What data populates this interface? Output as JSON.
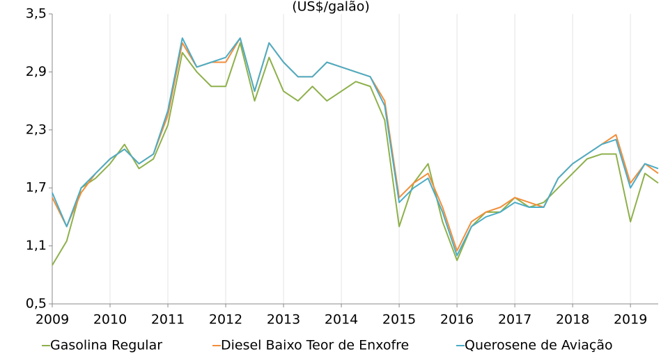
{
  "chart_data": {
    "type": "line",
    "title": "(US$/galão)",
    "x": [
      2009.0,
      2009.25,
      2009.5,
      2009.75,
      2010.0,
      2010.25,
      2010.5,
      2010.75,
      2011.0,
      2011.25,
      2011.5,
      2011.75,
      2012.0,
      2012.25,
      2012.5,
      2012.75,
      2013.0,
      2013.25,
      2013.5,
      2013.75,
      2014.0,
      2014.25,
      2014.5,
      2014.75,
      2015.0,
      2015.25,
      2015.5,
      2015.75,
      2016.0,
      2016.25,
      2016.5,
      2016.75,
      2017.0,
      2017.25,
      2017.5,
      2017.75,
      2018.0,
      2018.25,
      2018.5,
      2018.75,
      2019.0,
      2019.25,
      2019.48
    ],
    "series": [
      {
        "name": "Gasolina Regular",
        "color": "#8db04a",
        "values": [
          0.9,
          1.15,
          1.7,
          1.8,
          1.95,
          2.15,
          1.9,
          2.0,
          2.35,
          3.1,
          2.9,
          2.75,
          2.75,
          3.2,
          2.6,
          3.05,
          2.7,
          2.6,
          2.75,
          2.6,
          2.7,
          2.8,
          2.75,
          2.4,
          1.3,
          1.75,
          1.95,
          1.35,
          0.95,
          1.3,
          1.45,
          1.45,
          1.6,
          1.5,
          1.55,
          1.7,
          1.85,
          2.0,
          2.05,
          2.05,
          1.35,
          1.85,
          1.75
        ]
      },
      {
        "name": "Diesel Baixo Teor de Enxofre",
        "color": "#f28e3b",
        "values": [
          1.6,
          1.3,
          1.65,
          1.85,
          2.0,
          2.1,
          1.95,
          2.05,
          2.45,
          3.2,
          2.95,
          3.0,
          3.0,
          3.25,
          2.7,
          3.2,
          3.0,
          2.85,
          2.85,
          3.0,
          2.95,
          2.9,
          2.85,
          2.6,
          1.6,
          1.75,
          1.85,
          1.5,
          1.05,
          1.35,
          1.45,
          1.5,
          1.6,
          1.55,
          1.5,
          1.8,
          1.95,
          2.05,
          2.15,
          2.25,
          1.75,
          1.95,
          1.85
        ]
      },
      {
        "name": "Querosene de Aviação",
        "color": "#4bacc6",
        "values": [
          1.65,
          1.3,
          1.7,
          1.85,
          2.0,
          2.1,
          1.95,
          2.05,
          2.5,
          3.25,
          2.95,
          3.0,
          3.05,
          3.25,
          2.7,
          3.2,
          3.0,
          2.85,
          2.85,
          3.0,
          2.95,
          2.9,
          2.85,
          2.55,
          1.55,
          1.7,
          1.8,
          1.45,
          1.0,
          1.3,
          1.4,
          1.45,
          1.55,
          1.5,
          1.5,
          1.8,
          1.95,
          2.05,
          2.15,
          2.2,
          1.7,
          1.95,
          1.9
        ]
      }
    ],
    "xlim": [
      2009,
      2019.48
    ],
    "xticks": [
      2009,
      2010,
      2011,
      2012,
      2013,
      2014,
      2015,
      2016,
      2017,
      2018,
      2019
    ],
    "ylim": [
      0.5,
      3.5
    ],
    "yticks": [
      {
        "value": 0.5,
        "label": "0,5"
      },
      {
        "value": 1.1,
        "label": "1,1"
      },
      {
        "value": 1.7,
        "label": "1,7"
      },
      {
        "value": 2.3,
        "label": "2,3"
      },
      {
        "value": 2.9,
        "label": "2,9"
      },
      {
        "value": 3.5,
        "label": "3,5"
      }
    ],
    "grid": "x",
    "legend": "bottom"
  }
}
